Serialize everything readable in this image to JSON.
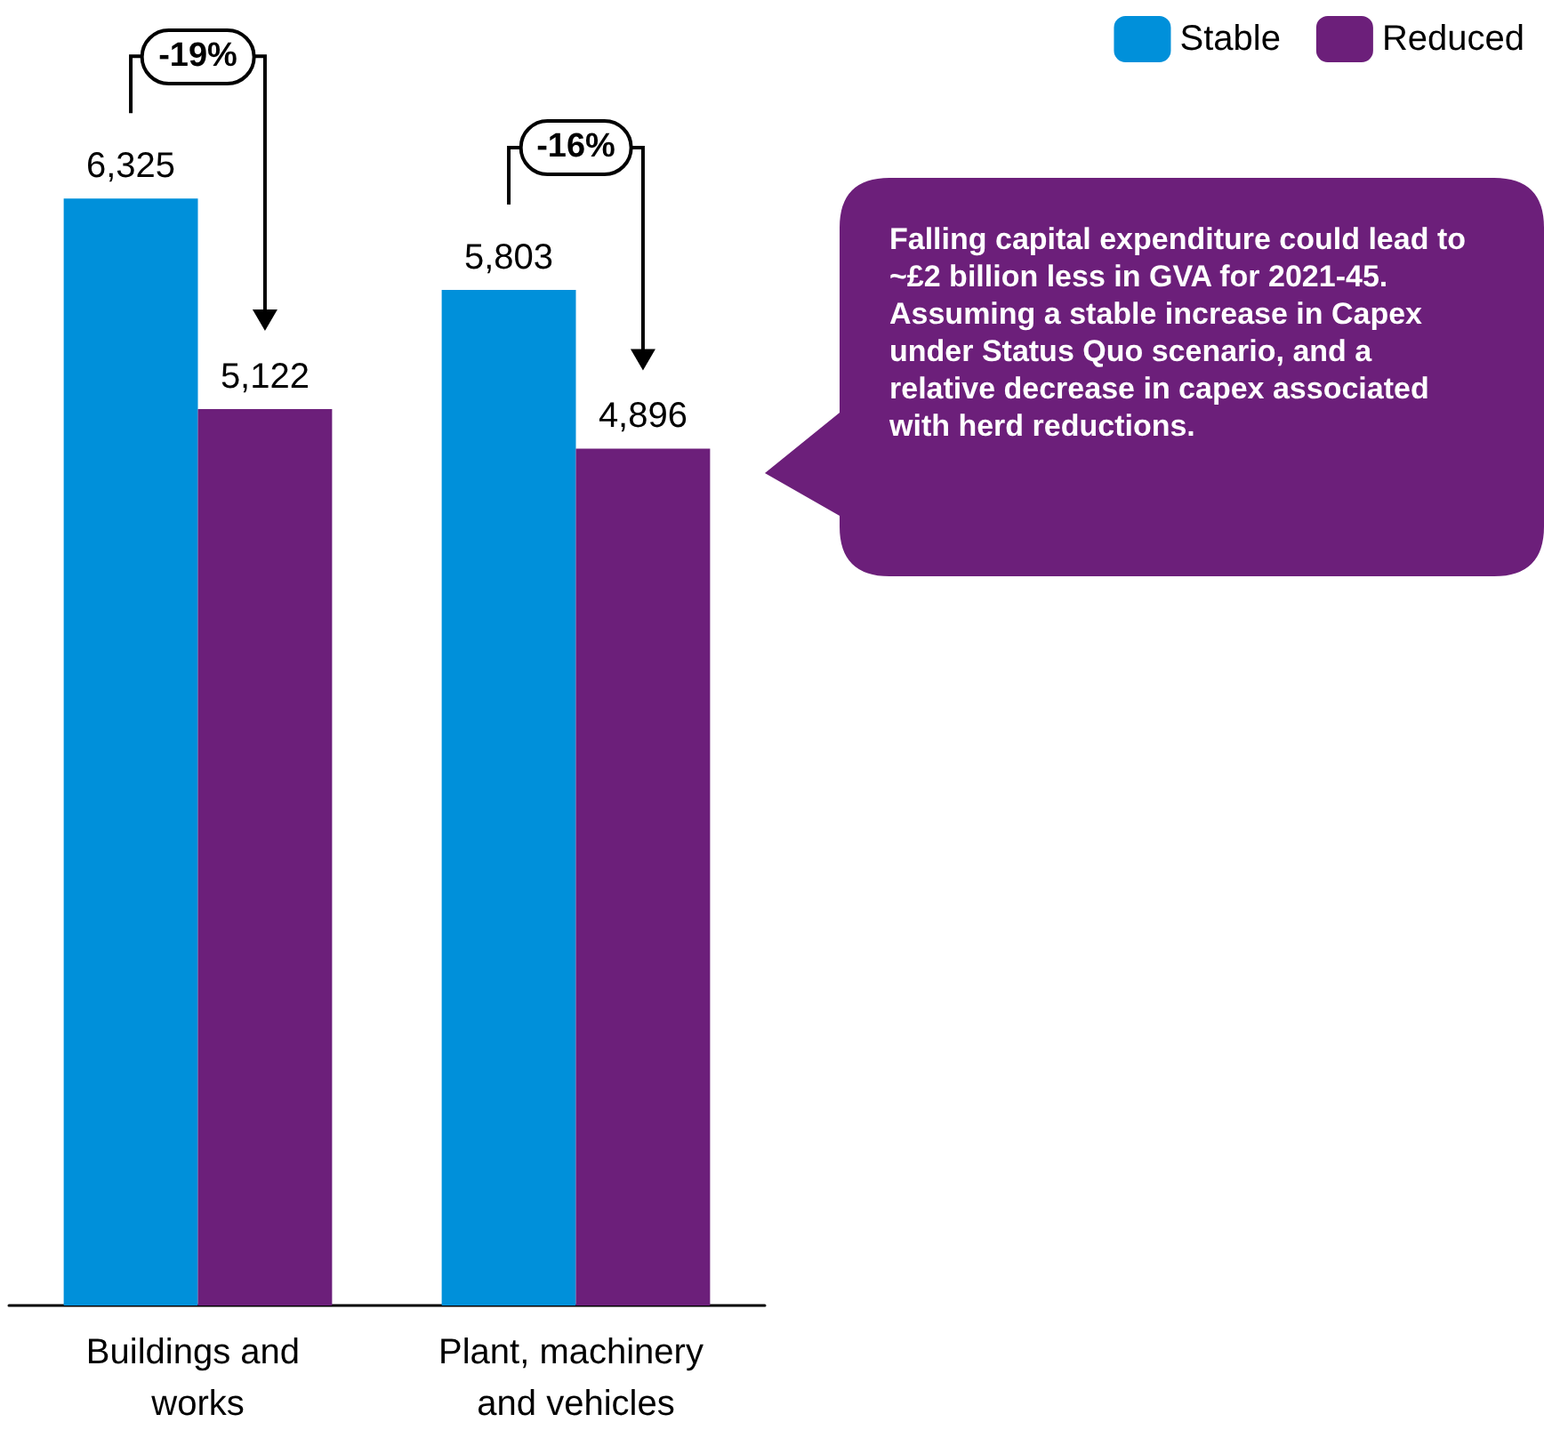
{
  "chart_data": {
    "type": "bar",
    "categories": [
      "Buildings and works",
      "Plant, machinery and vehicles"
    ],
    "series": [
      {
        "name": "Stable",
        "color": "#0090da",
        "values": [
          6325,
          5803
        ],
        "value_labels": [
          "6,325",
          "5,803"
        ]
      },
      {
        "name": "Reduced",
        "color": "#6c1f7a",
        "values": [
          5122,
          4896
        ],
        "value_labels": [
          "5,122",
          "4,896"
        ]
      }
    ],
    "tick_labels": "x",
    "legend": "top right",
    "annotations": [
      "-19%",
      "-16%",
      "Falling capital expenditure could lead to ~£2 billion less in GVA for 2021-45. Assuming a stable increase in Capex under Status Quo scenario, and a relative decrease in capex associated with herd reductions."
    ]
  }
}
